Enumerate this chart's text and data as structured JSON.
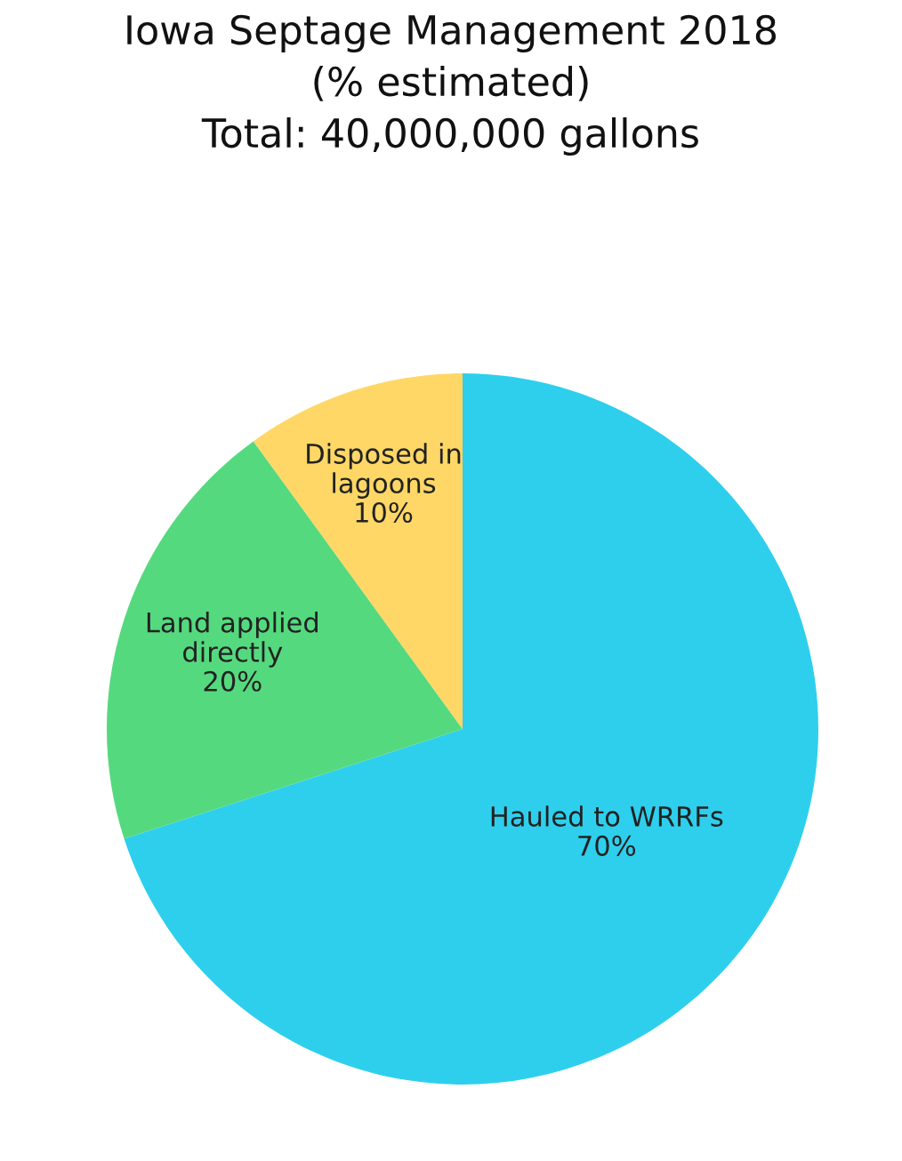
{
  "chart_data": {
    "type": "pie",
    "title": "Iowa Septage Management 2018",
    "subtitle": "(% estimated)",
    "annotations": [
      "Total: 40,000,000 gallons"
    ],
    "categories": [
      "Hauled to WRRFs",
      "Land applied\ndirectly",
      "Disposed in\nlagoons"
    ],
    "values": [
      70,
      20,
      10
    ],
    "value_labels": [
      "70%",
      "20%",
      "10%"
    ],
    "colors": [
      "#2ecfed",
      "#55d97e",
      "#fed766"
    ]
  }
}
